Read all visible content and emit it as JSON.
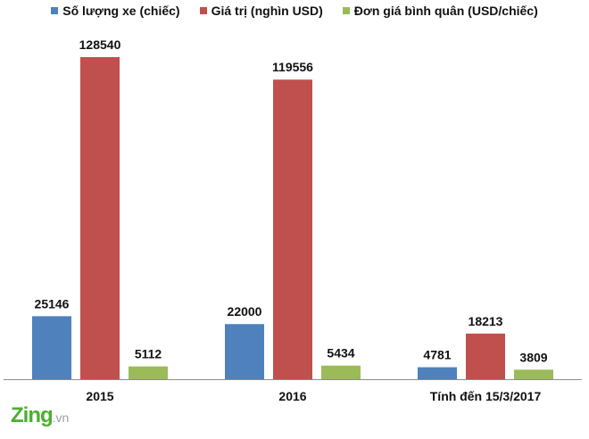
{
  "chart_data": {
    "type": "bar",
    "categories": [
      "2015",
      "2016",
      "Tính đến 15/3/2017"
    ],
    "series": [
      {
        "name": "Số lượng xe (chiếc)",
        "values": [
          25146,
          22000,
          4781
        ],
        "color": "#4f81bd"
      },
      {
        "name": "Giá trị (nghìn USD)",
        "values": [
          128540,
          119556,
          18213
        ],
        "color": "#c0504d"
      },
      {
        "name": "Đơn giá bình quân (USD/chiếc)",
        "values": [
          5112,
          5434,
          3809
        ],
        "color": "#9bbb59"
      }
    ],
    "data_labels": true,
    "legend_position": "top",
    "grid": false,
    "ylim": [
      0,
      140000
    ]
  },
  "watermark": {
    "brand": "Zing",
    "suffix": ".vn"
  }
}
